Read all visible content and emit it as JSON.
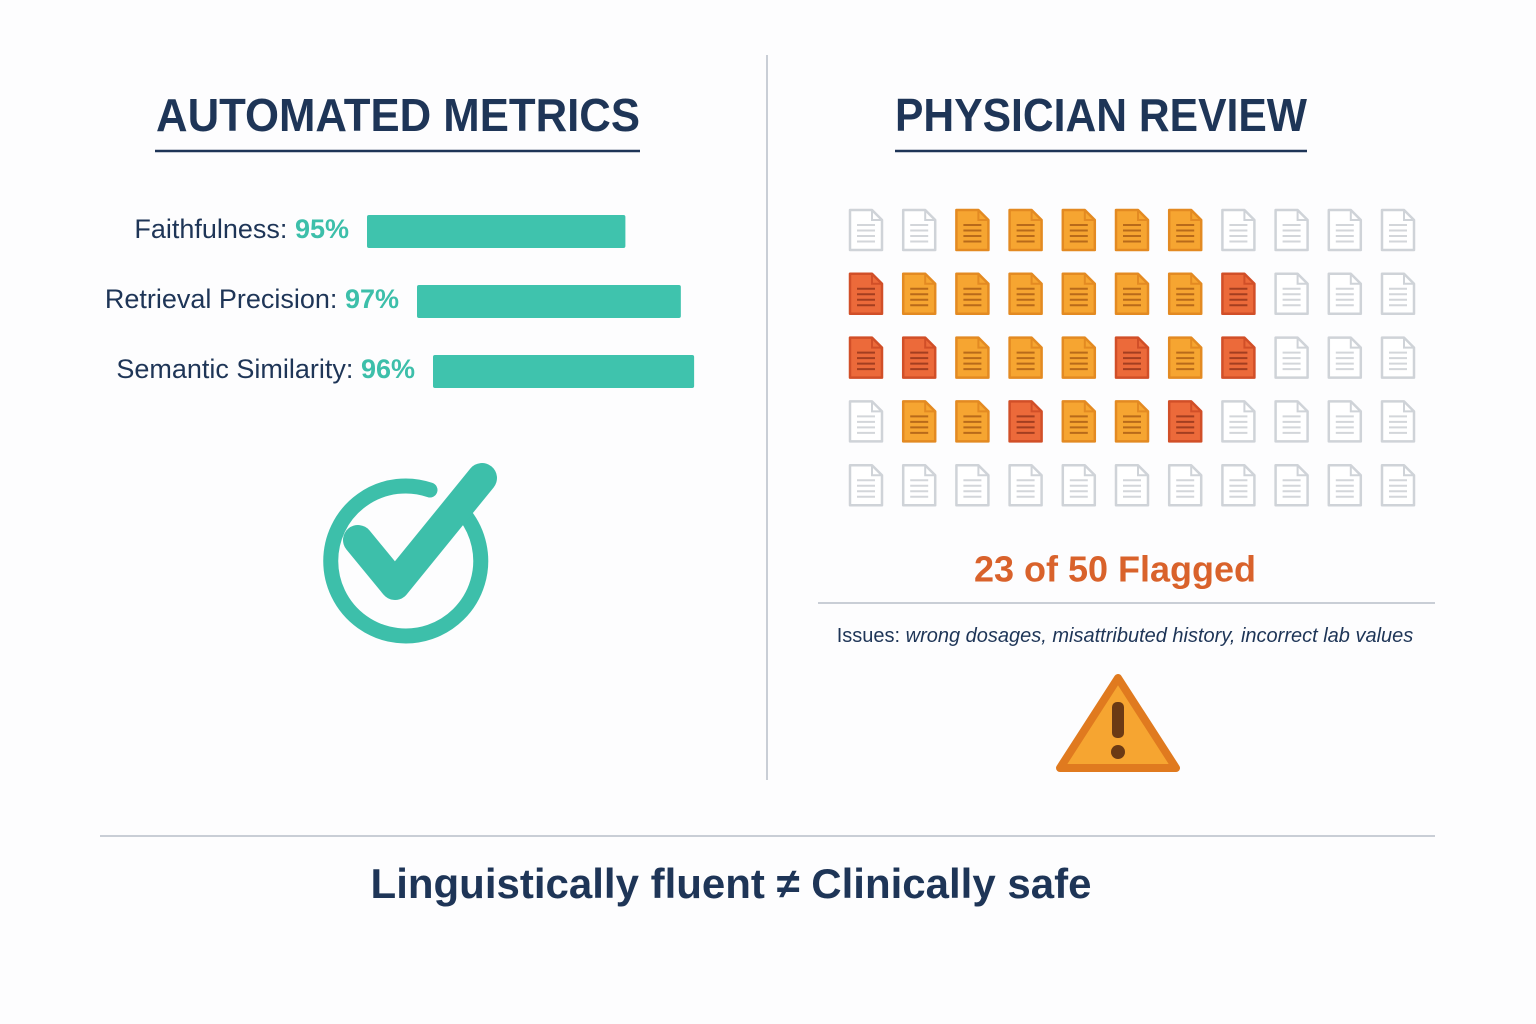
{
  "left": {
    "title": "AUTOMATED METRICS",
    "metrics": [
      {
        "label": "Faithfulness:",
        "value": 95,
        "value_label": "95%"
      },
      {
        "label": "Retrieval Precision:",
        "value": 97,
        "value_label": "97%"
      },
      {
        "label": "Semantic Similarity:",
        "value": 96,
        "value_label": "96%"
      }
    ]
  },
  "right": {
    "title": "PHYSICIAN REVIEW",
    "flagged": "23 of 50 Flagged",
    "issues_label": "Issues:",
    "issues": "wrong dosages, misattributed history, incorrect lab values"
  },
  "footer": "Linguistically fluent ≠ Clinically safe"
}
